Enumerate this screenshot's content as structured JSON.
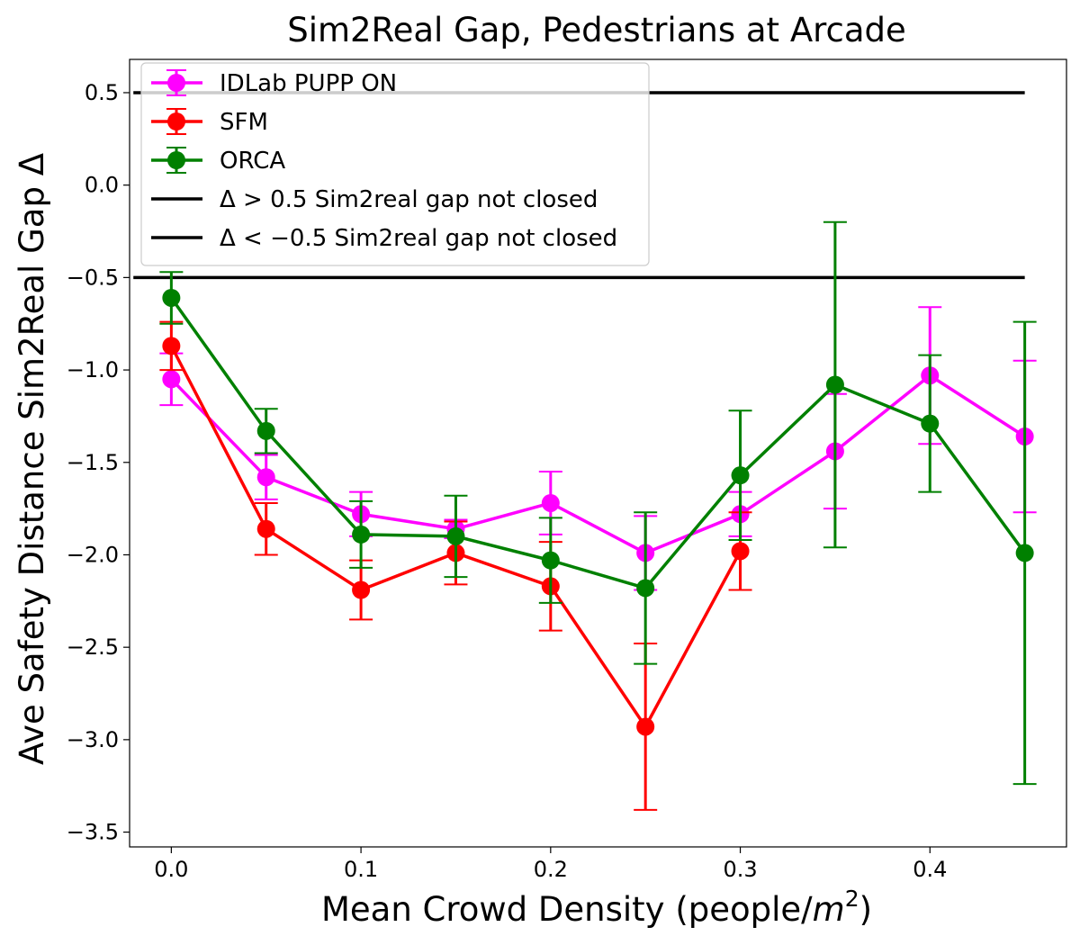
{
  "chart_data": {
    "type": "line",
    "title": "Sim2Real Gap, Pedestrians at Arcade",
    "xlabel": "Mean Crowd Density (people/m²)",
    "xlabel_parts": {
      "prefix": "Mean Crowd Density (people/",
      "var": "m",
      "sup": "2",
      "suffix": ")"
    },
    "ylabel": "Ave Safety Distance Sim2Real Gap Δ",
    "xlim": [
      -0.022,
      0.472
    ],
    "ylim": [
      -3.58,
      0.68
    ],
    "xticks": [
      0.0,
      0.1,
      0.2,
      0.3,
      0.4
    ],
    "xtick_labels": [
      "0.0",
      "0.1",
      "0.2",
      "0.3",
      "0.4"
    ],
    "yticks": [
      0.5,
      0.0,
      -0.5,
      -1.0,
      -1.5,
      -2.0,
      -2.5,
      -3.0,
      -3.5
    ],
    "ytick_labels": [
      "0.5",
      "0.0",
      "−0.5",
      "−1.0",
      "−1.5",
      "−2.0",
      "−2.5",
      "−3.0",
      "−3.5"
    ],
    "grid": false,
    "legend_position": "top-left",
    "series": [
      {
        "name": "IDLab PUPP ON",
        "color": "#ff00ff",
        "x": [
          0.0,
          0.05,
          0.1,
          0.15,
          0.2,
          0.25,
          0.3,
          0.35,
          0.4,
          0.45
        ],
        "y": [
          -1.05,
          -1.58,
          -1.78,
          -1.86,
          -1.72,
          -1.99,
          -1.78,
          -1.44,
          -1.03,
          -1.36
        ],
        "err": [
          0.14,
          0.12,
          0.12,
          0.05,
          0.17,
          0.2,
          0.12,
          0.31,
          0.37,
          0.41
        ]
      },
      {
        "name": "SFM",
        "color": "#ff0000",
        "x": [
          0.0,
          0.05,
          0.1,
          0.15,
          0.2,
          0.25,
          0.3
        ],
        "y": [
          -0.87,
          -1.86,
          -2.19,
          -1.99,
          -2.17,
          -2.93,
          -1.98
        ],
        "err": [
          0.13,
          0.14,
          0.16,
          0.17,
          0.24,
          0.45,
          0.21
        ]
      },
      {
        "name": "ORCA",
        "color": "#008000",
        "x": [
          0.0,
          0.05,
          0.1,
          0.15,
          0.2,
          0.25,
          0.3,
          0.35,
          0.4,
          0.45
        ],
        "y": [
          -0.61,
          -1.33,
          -1.89,
          -1.9,
          -2.03,
          -2.18,
          -1.57,
          -1.08,
          -1.29,
          -1.99
        ],
        "err": [
          0.14,
          0.12,
          0.18,
          0.22,
          0.23,
          0.41,
          0.35,
          0.88,
          0.37,
          1.25
        ]
      }
    ],
    "reference_lines": [
      {
        "label": "Δ > 0.5 Sim2real gap not closed",
        "y": 0.5,
        "color": "#000000",
        "x_range": [
          -0.02,
          0.45
        ]
      },
      {
        "label": "Δ < −0.5 Sim2real gap not closed",
        "y": -0.5,
        "color": "#000000",
        "x_range": [
          -0.02,
          0.45
        ]
      }
    ]
  }
}
